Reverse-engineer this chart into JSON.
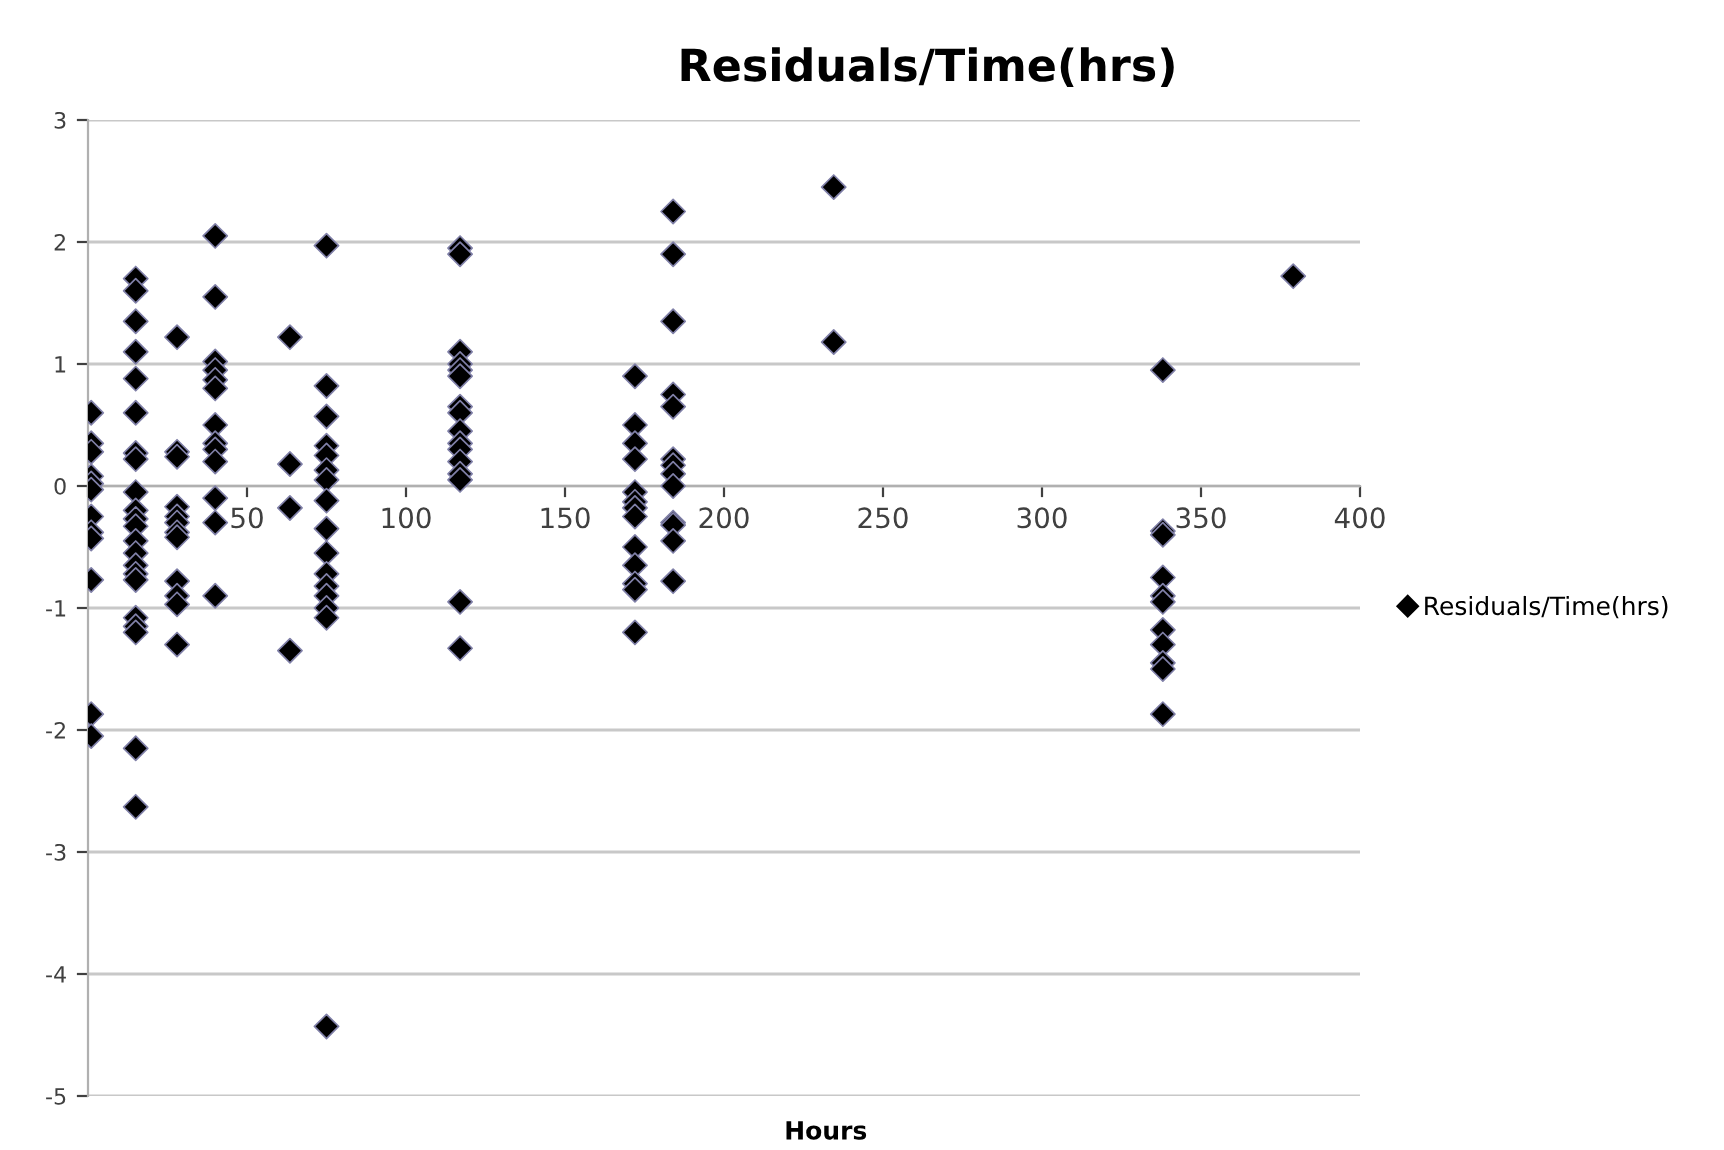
{
  "chart_data": {
    "type": "scatter",
    "title": "Residuals/Time(hrs)",
    "xlabel": "Hours",
    "series": [
      {
        "name": "Residuals/Time(hrs)",
        "color": "#000000",
        "x": [
          1,
          1,
          1,
          1,
          1,
          1,
          1,
          1,
          1,
          1,
          1,
          1,
          15,
          15,
          15,
          15,
          15,
          15,
          15,
          15,
          15,
          15,
          15,
          15,
          15,
          15,
          15,
          15,
          15,
          15,
          15,
          15,
          15,
          15,
          28,
          28,
          28,
          28,
          28,
          28,
          28,
          28,
          28,
          28,
          28,
          28,
          40,
          40,
          40,
          40,
          40,
          40,
          40,
          40,
          40,
          40,
          40,
          40,
          40,
          63.5,
          63.5,
          63.5,
          63.5,
          75,
          75,
          75,
          75,
          75,
          75,
          75,
          75,
          75,
          75,
          75,
          75,
          75,
          75,
          75,
          75,
          117,
          117,
          117,
          117,
          117,
          117,
          117,
          117,
          117,
          117,
          117,
          117,
          117,
          117,
          117,
          117,
          172,
          172,
          172,
          172,
          172,
          172,
          172,
          172,
          172,
          172,
          172,
          172,
          172,
          184,
          184,
          184,
          184,
          184,
          184,
          184,
          184,
          184,
          184,
          184,
          184,
          184,
          234.5,
          234.5,
          338,
          338,
          338,
          338,
          338,
          338,
          338,
          338,
          338,
          338,
          338,
          379
        ],
        "values": [
          0.6,
          0.35,
          0.28,
          0.08,
          0.02,
          -0.03,
          -0.25,
          -0.38,
          -0.43,
          -0.77,
          -1.87,
          -2.05,
          1.7,
          1.6,
          1.35,
          1.1,
          0.88,
          0.6,
          0.27,
          0.22,
          -0.05,
          -0.2,
          -0.27,
          -0.33,
          -0.45,
          -0.55,
          -0.65,
          -0.72,
          -0.77,
          -1.08,
          -1.15,
          -1.2,
          -2.15,
          -2.63,
          1.22,
          0.28,
          0.24,
          -0.17,
          -0.25,
          -0.3,
          -0.38,
          -0.42,
          -0.78,
          -0.9,
          -0.97,
          -1.3,
          2.05,
          1.55,
          1.02,
          0.95,
          0.87,
          0.8,
          0.5,
          0.35,
          0.3,
          0.2,
          -0.1,
          -0.3,
          -0.9,
          1.22,
          0.18,
          -0.18,
          -1.35,
          1.97,
          0.82,
          0.57,
          0.33,
          0.25,
          0.13,
          0.05,
          -0.12,
          -0.35,
          -0.55,
          -0.72,
          -0.82,
          -0.9,
          -1.0,
          -1.08,
          -4.43,
          1.95,
          1.9,
          1.1,
          1.0,
          0.95,
          0.9,
          0.65,
          0.6,
          0.45,
          0.35,
          0.3,
          0.2,
          0.1,
          0.05,
          -0.95,
          -1.33,
          0.9,
          0.5,
          0.35,
          0.22,
          -0.05,
          -0.13,
          -0.18,
          -0.25,
          -0.5,
          -0.65,
          -0.8,
          -0.85,
          -1.2,
          2.25,
          1.9,
          1.35,
          0.75,
          0.65,
          0.22,
          0.17,
          0.1,
          0.0,
          -0.3,
          -0.32,
          -0.45,
          -0.78,
          2.45,
          1.18,
          0.95,
          -0.37,
          -0.4,
          -0.75,
          -0.9,
          -0.95,
          -1.18,
          -1.3,
          -1.45,
          -1.5,
          -1.87,
          1.72
        ]
      }
    ],
    "xlim": [
      0,
      400
    ],
    "xticks": [
      {
        "value": 0,
        "label": null
      },
      50,
      100,
      150,
      200,
      250,
      300,
      350,
      400
    ],
    "ylim": [
      -5,
      3
    ],
    "yticks": [
      -5,
      -4,
      -3,
      -2,
      -1,
      0,
      1,
      2,
      3
    ],
    "grid": "y",
    "legend": "right",
    "marker": "diamond"
  }
}
